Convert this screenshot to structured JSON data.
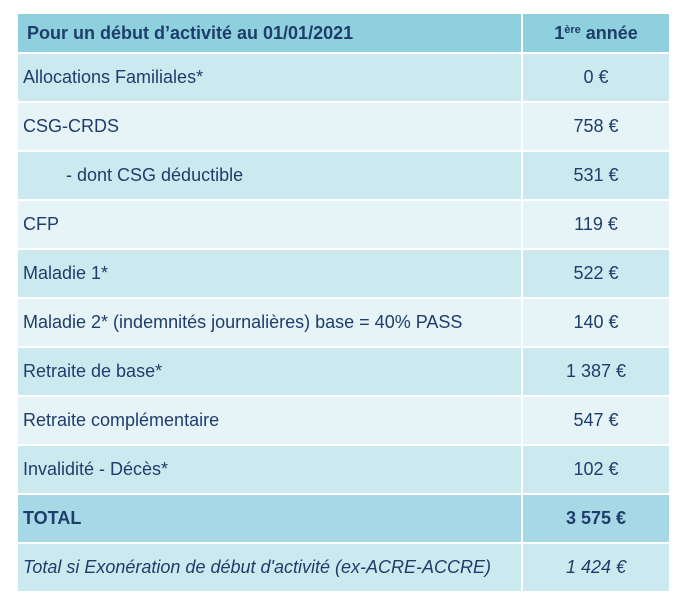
{
  "table": {
    "header": [
      "Pour un début d’activité au 01/01/2021",
      {
        "base": "1",
        "sup": "ère",
        "rest": " année"
      }
    ],
    "rows": [
      [
        "Allocations Familiales*",
        "0 €"
      ],
      [
        "CSG-CRDS",
        "758 €"
      ],
      [
        "- dont CSG déductible",
        "531 €"
      ],
      [
        "CFP",
        "119 €"
      ],
      [
        "Maladie 1*",
        "522 €"
      ],
      [
        "Maladie 2* (indemnités journalières) base = 40% PASS",
        "140 €"
      ],
      [
        "Retraite de base*",
        "1 387 €"
      ],
      [
        "Retraite complémentaire",
        "547 €"
      ],
      [
        "Invalidité - Décès*",
        "102 €"
      ],
      [
        "TOTAL",
        "3 575 €"
      ],
      [
        "Total si Exonération de début d'activité (ex-ACRE-ACCRE)",
        "1 424 €"
      ]
    ]
  }
}
